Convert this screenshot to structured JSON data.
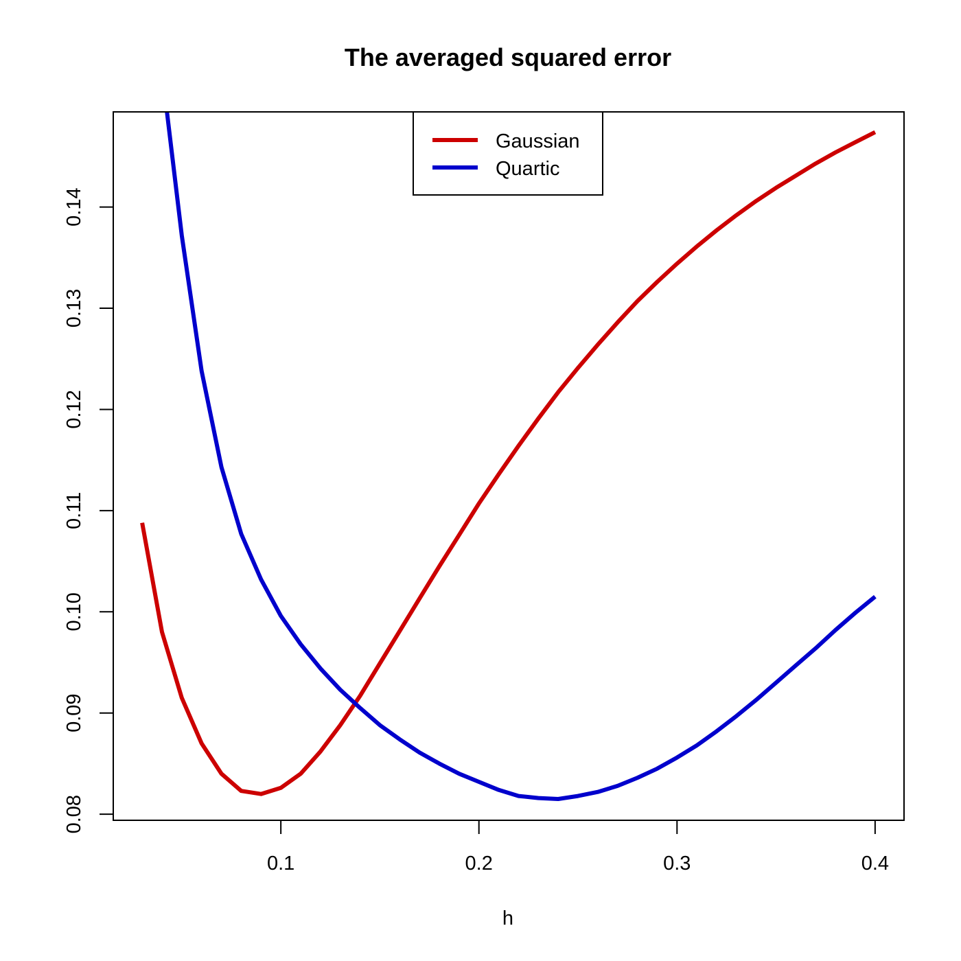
{
  "chart_data": {
    "type": "line",
    "title": "The averaged squared error",
    "xlabel": "h",
    "ylabel": "",
    "xlim": [
      0.0154,
      0.4146
    ],
    "ylim": [
      0.0794,
      0.1494
    ],
    "x_ticks": [
      0.1,
      0.2,
      0.3,
      0.4
    ],
    "x_tick_labels": [
      "0.1",
      "0.2",
      "0.3",
      "0.4"
    ],
    "y_ticks": [
      0.08,
      0.09,
      0.1,
      0.11,
      0.12,
      0.13,
      0.14
    ],
    "y_tick_labels": [
      "0.08",
      "0.09",
      "0.10",
      "0.11",
      "0.12",
      "0.13",
      "0.14"
    ],
    "grid": false,
    "legend_position": "top-center",
    "series": [
      {
        "name": "Gaussian",
        "color": "#cc0000",
        "x": [
          0.03,
          0.04,
          0.05,
          0.06,
          0.07,
          0.08,
          0.09,
          0.1,
          0.11,
          0.12,
          0.13,
          0.14,
          0.15,
          0.16,
          0.17,
          0.18,
          0.19,
          0.2,
          0.21,
          0.22,
          0.23,
          0.24,
          0.25,
          0.26,
          0.27,
          0.28,
          0.29,
          0.3,
          0.31,
          0.32,
          0.33,
          0.34,
          0.35,
          0.36,
          0.37,
          0.38,
          0.39,
          0.4
        ],
        "y": [
          0.1088,
          0.098,
          0.0915,
          0.087,
          0.084,
          0.0823,
          0.082,
          0.0826,
          0.084,
          0.0862,
          0.0888,
          0.0917,
          0.0949,
          0.0981,
          0.1013,
          0.1045,
          0.1076,
          0.1107,
          0.1136,
          0.1164,
          0.1191,
          0.1217,
          0.1241,
          0.1264,
          0.1286,
          0.1307,
          0.1326,
          0.1344,
          0.1361,
          0.1377,
          0.1392,
          0.1406,
          0.1419,
          0.1431,
          0.1443,
          0.1454,
          0.1464,
          0.1474
        ]
      },
      {
        "name": "Quartic",
        "color": "#0000cc",
        "x": [
          0.0425,
          0.05,
          0.06,
          0.07,
          0.08,
          0.09,
          0.1,
          0.11,
          0.12,
          0.13,
          0.14,
          0.15,
          0.16,
          0.17,
          0.18,
          0.19,
          0.2,
          0.21,
          0.22,
          0.23,
          0.24,
          0.25,
          0.26,
          0.27,
          0.28,
          0.29,
          0.3,
          0.31,
          0.32,
          0.33,
          0.34,
          0.35,
          0.36,
          0.37,
          0.38,
          0.39,
          0.4
        ],
        "y": [
          0.1494,
          0.1372,
          0.1238,
          0.1143,
          0.1077,
          0.1032,
          0.0996,
          0.0968,
          0.0944,
          0.0923,
          0.0905,
          0.0888,
          0.0874,
          0.0861,
          0.085,
          0.084,
          0.0832,
          0.0824,
          0.0818,
          0.0816,
          0.0815,
          0.0818,
          0.0822,
          0.0828,
          0.0836,
          0.0845,
          0.0856,
          0.0868,
          0.0882,
          0.0897,
          0.0913,
          0.093,
          0.0947,
          0.0964,
          0.0982,
          0.0999,
          0.1015
        ]
      }
    ]
  }
}
